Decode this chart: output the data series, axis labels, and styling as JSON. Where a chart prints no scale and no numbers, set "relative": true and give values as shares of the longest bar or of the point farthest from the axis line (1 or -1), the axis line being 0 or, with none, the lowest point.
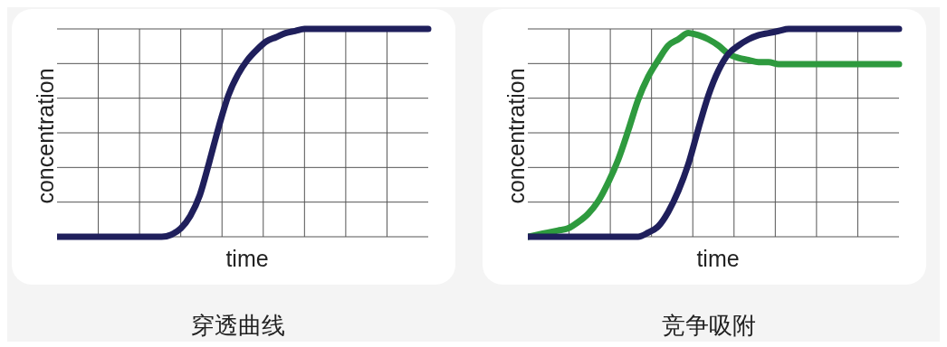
{
  "chart_data": [
    {
      "type": "line",
      "title": "穿透曲线",
      "xlabel": "time",
      "ylabel": "concentration",
      "relative": true,
      "grid": true,
      "categories": [
        null,
        null,
        null,
        null,
        null,
        null,
        null,
        null,
        null,
        null,
        null,
        null,
        null,
        null,
        null,
        null,
        null,
        null,
        null,
        null,
        null,
        null,
        null,
        null,
        null,
        null,
        null,
        null,
        null,
        null,
        null,
        null,
        null,
        null,
        null,
        null,
        null,
        null,
        null,
        null
      ],
      "series": [
        {
          "color": "#1f1f5c",
          "values": [
            0,
            0,
            0,
            0,
            0,
            0,
            0,
            0,
            0,
            0,
            0,
            0,
            0.01,
            0.04,
            0.1,
            0.2,
            0.36,
            0.53,
            0.68,
            0.78,
            0.85,
            0.9,
            0.94,
            0.96,
            0.98,
            0.99,
            1,
            1,
            1,
            1,
            1,
            1,
            1,
            1,
            1,
            1,
            1,
            1,
            1,
            1
          ]
        }
      ]
    },
    {
      "type": "line",
      "title": "竞争吸附",
      "xlabel": "time",
      "ylabel": "concentration",
      "relative": true,
      "grid": true,
      "categories": [
        null,
        null,
        null,
        null,
        null,
        null,
        null,
        null,
        null,
        null,
        null,
        null,
        null,
        null,
        null,
        null,
        null,
        null,
        null,
        null,
        null,
        null,
        null,
        null,
        null,
        null,
        null,
        null,
        null,
        null,
        null,
        null,
        null,
        null,
        null,
        null,
        null,
        null
      ],
      "series": [
        {
          "color": "#2e9a3e",
          "values": [
            0,
            0.01,
            0.02,
            0.03,
            0.04,
            0.07,
            0.11,
            0.17,
            0.26,
            0.37,
            0.51,
            0.66,
            0.77,
            0.85,
            0.92,
            0.95,
            0.98,
            0.97,
            0.95,
            0.92,
            0.88,
            0.86,
            0.85,
            0.84,
            0.84,
            0.83,
            0.83,
            0.83,
            0.83,
            0.83,
            0.83,
            0.83,
            0.83,
            0.83,
            0.83,
            0.83,
            0.83,
            0.83
          ]
        },
        {
          "color": "#1f1f5c",
          "values": [
            0,
            0,
            0,
            0,
            0,
            0,
            0,
            0,
            0,
            0,
            0,
            0,
            0.02,
            0.05,
            0.12,
            0.22,
            0.35,
            0.52,
            0.68,
            0.8,
            0.88,
            0.92,
            0.95,
            0.97,
            0.98,
            0.99,
            1,
            1,
            1,
            1,
            1,
            1,
            1,
            1,
            1,
            1,
            1,
            1
          ]
        }
      ]
    }
  ]
}
